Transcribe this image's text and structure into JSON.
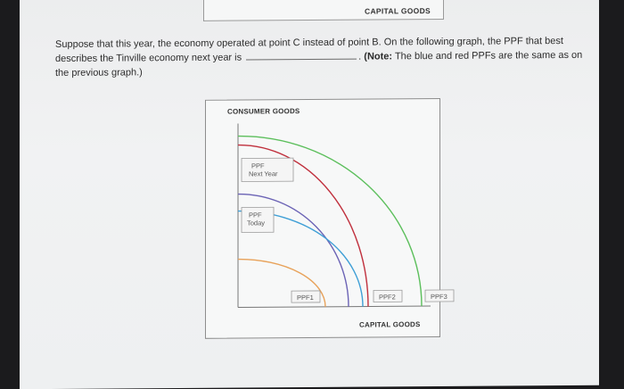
{
  "previous_graph": {
    "x_axis_label": "CAPITAL GOODS"
  },
  "question": {
    "part1": "Suppose that this year, the economy operated at point C instead of point B. On the following graph, the PPF that best describes the Tinville economy next year is",
    "part2": ".",
    "note_label": "(Note:",
    "note_text": "The blue and red PPFs are the same as on the previous graph.)"
  },
  "graph": {
    "y_axis_label": "CONSUMER GOODS",
    "x_axis_label": "CAPITAL GOODS",
    "legend_next_year": [
      "PPF",
      "Next Year"
    ],
    "legend_today": [
      "PPF",
      "Today"
    ],
    "curves": [
      {
        "name": "PPF1",
        "color": "#e8a25a"
      },
      {
        "name": "PPF2",
        "color": "#3f9fd6"
      },
      {
        "name": "PPF3",
        "color": "#5cbf5c"
      }
    ],
    "today_color": "#6b63b5",
    "next_year_color": "#c0303d"
  }
}
